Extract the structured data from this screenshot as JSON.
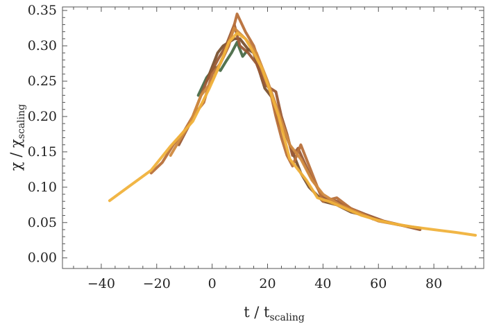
{
  "chart_data": {
    "type": "line",
    "title": "",
    "xlabel": {
      "main": "t / t",
      "sub": "scaling"
    },
    "ylabel": {
      "main": "χ / χ",
      "sub": "scaling"
    },
    "xlim": [
      -54,
      98
    ],
    "ylim": [
      -0.015,
      0.355
    ],
    "xticks": [
      -40,
      -20,
      0,
      20,
      40,
      60,
      80
    ],
    "xtick_labels": [
      "−40",
      "−20",
      "0",
      "20",
      "40",
      "60",
      "80"
    ],
    "yticks": [
      0.0,
      0.05,
      0.1,
      0.15,
      0.2,
      0.25,
      0.3,
      0.35
    ],
    "ytick_labels": [
      "0.00",
      "0.05",
      "0.10",
      "0.15",
      "0.20",
      "0.25",
      "0.30",
      "0.35"
    ],
    "grid": false,
    "legend": "none",
    "series": [
      {
        "color": "#4a6b48",
        "x": [
          -5,
          -2,
          1,
          3,
          5,
          7,
          9,
          11,
          13
        ],
        "y": [
          0.23,
          0.255,
          0.27,
          0.265,
          0.278,
          0.29,
          0.305,
          0.285,
          0.295
        ]
      },
      {
        "color": "#7a5230",
        "x": [
          -2,
          2,
          4,
          6,
          8,
          10,
          13,
          15,
          17,
          19,
          22,
          24,
          27,
          29,
          32,
          35,
          40,
          45,
          50,
          55,
          60,
          67,
          75
        ],
        "y": [
          0.25,
          0.29,
          0.3,
          0.305,
          0.31,
          0.31,
          0.295,
          0.29,
          0.265,
          0.24,
          0.225,
          0.19,
          0.17,
          0.15,
          0.12,
          0.1,
          0.08,
          0.075,
          0.065,
          0.06,
          0.053,
          0.047,
          0.042
        ]
      },
      {
        "color": "#9a5a35",
        "x": [
          -12,
          -8,
          -5,
          -2,
          2,
          5,
          8,
          10,
          13,
          16,
          19,
          23,
          25,
          27,
          29,
          31,
          35,
          40,
          45,
          50,
          55,
          62,
          75
        ],
        "y": [
          0.16,
          0.19,
          0.22,
          0.25,
          0.28,
          0.3,
          0.33,
          0.3,
          0.29,
          0.275,
          0.245,
          0.235,
          0.2,
          0.175,
          0.145,
          0.155,
          0.12,
          0.085,
          0.08,
          0.07,
          0.062,
          0.052,
          0.04
        ]
      },
      {
        "color": "#b8703a",
        "x": [
          -22,
          -18,
          -14,
          -10,
          -7,
          -3,
          0,
          3,
          6,
          9,
          12,
          15,
          18,
          21,
          23,
          25,
          27,
          29,
          32,
          36,
          40,
          45,
          50,
          58,
          70
        ],
        "y": [
          0.12,
          0.135,
          0.16,
          0.18,
          0.2,
          0.22,
          0.26,
          0.275,
          0.3,
          0.345,
          0.32,
          0.3,
          0.265,
          0.235,
          0.2,
          0.17,
          0.145,
          0.13,
          0.16,
          0.12,
          0.08,
          0.085,
          0.07,
          0.055,
          0.045
        ]
      },
      {
        "color": "#d08a40",
        "x": [
          -15,
          -12,
          -8,
          -4,
          0,
          4,
          8,
          12,
          16,
          20,
          24,
          28,
          32,
          36,
          40,
          46,
          52,
          60,
          70
        ],
        "y": [
          0.145,
          0.165,
          0.19,
          0.23,
          0.25,
          0.285,
          0.325,
          0.31,
          0.29,
          0.25,
          0.205,
          0.16,
          0.14,
          0.11,
          0.09,
          0.075,
          0.065,
          0.052,
          0.045
        ]
      },
      {
        "color": "#f0b23c",
        "x": [
          -37,
          -30,
          -22,
          -15,
          -7,
          -1,
          3,
          6,
          9,
          12,
          15,
          18,
          21,
          24,
          28,
          31,
          34,
          38,
          42,
          48,
          54,
          60,
          66,
          72,
          80,
          88,
          95
        ],
        "y": [
          0.081,
          0.101,
          0.124,
          0.158,
          0.193,
          0.24,
          0.275,
          0.305,
          0.318,
          0.31,
          0.29,
          0.268,
          0.235,
          0.2,
          0.14,
          0.125,
          0.11,
          0.085,
          0.08,
          0.07,
          0.06,
          0.053,
          0.048,
          0.044,
          0.04,
          0.036,
          0.032
        ]
      }
    ]
  }
}
